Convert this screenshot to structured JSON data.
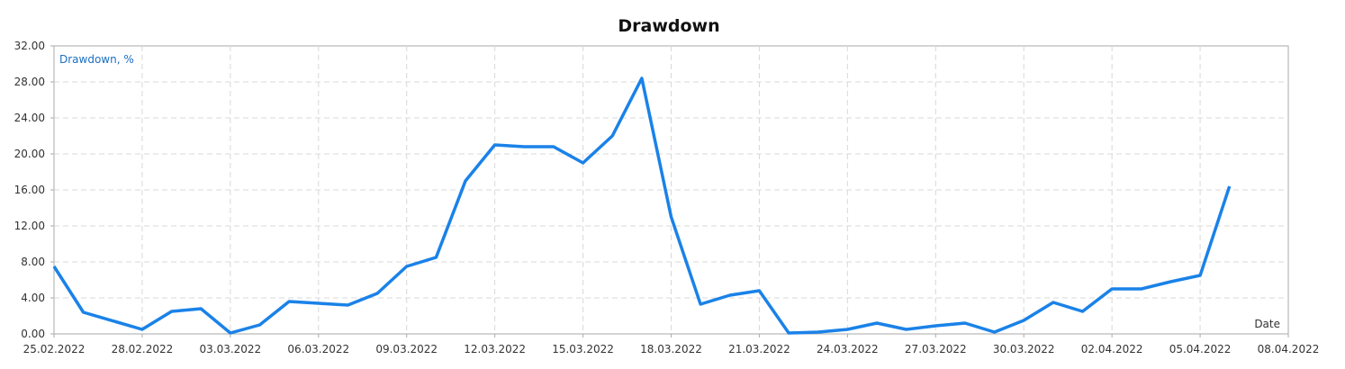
{
  "chart_data": {
    "type": "line",
    "title": "Drawdown",
    "ylabel": "Drawdown, %",
    "xlabel": "Date",
    "x": [
      "25.02.2022",
      "26.02.2022",
      "28.02.2022",
      "01.03.2022",
      "02.03.2022",
      "03.03.2022",
      "04.03.2022",
      "05.03.2022",
      "06.03.2022",
      "07.03.2022",
      "08.03.2022",
      "09.03.2022",
      "10.03.2022",
      "11.03.2022",
      "12.03.2022",
      "13.03.2022",
      "14.03.2022",
      "15.03.2022",
      "16.03.2022",
      "17.03.2022",
      "18.03.2022",
      "19.03.2022",
      "20.03.2022",
      "21.03.2022",
      "22.03.2022",
      "23.03.2022",
      "24.03.2022",
      "25.03.2022",
      "26.03.2022",
      "27.03.2022",
      "28.03.2022",
      "29.03.2022",
      "30.03.2022",
      "31.03.2022",
      "01.04.2022",
      "02.04.2022",
      "03.04.2022",
      "04.04.2022",
      "05.04.2022",
      "06.04.2022"
    ],
    "series": [
      {
        "name": "Drawdown, %",
        "color": "#1a82e8",
        "values": [
          7.5,
          2.4,
          0.5,
          2.5,
          2.8,
          0.1,
          1.0,
          3.6,
          3.4,
          3.2,
          4.5,
          7.5,
          8.5,
          17.0,
          21.0,
          20.8,
          20.8,
          19.0,
          22.0,
          28.4,
          13.0,
          3.3,
          4.3,
          4.8,
          0.1,
          0.2,
          0.5,
          1.2,
          0.5,
          0.9,
          1.2,
          0.2,
          1.5,
          3.5,
          2.5,
          5.0,
          5.0,
          5.8,
          6.5,
          16.4
        ]
      }
    ],
    "xlim": [
      "25.02.2022",
      "08.04.2022"
    ],
    "xticks": [
      "25.02.2022",
      "28.02.2022",
      "03.03.2022",
      "06.03.2022",
      "09.03.2022",
      "12.03.2022",
      "15.03.2022",
      "18.03.2022",
      "21.03.2022",
      "24.03.2022",
      "27.03.2022",
      "30.03.2022",
      "02.04.2022",
      "05.04.2022",
      "08.04.2022"
    ],
    "ylim": [
      0,
      32
    ],
    "yticks": [
      {
        "value": 0,
        "label": "0.00"
      },
      {
        "value": 4,
        "label": "4.00"
      },
      {
        "value": 8,
        "label": "8.00"
      },
      {
        "value": 12,
        "label": "12.00"
      },
      {
        "value": 16,
        "label": "16.00"
      },
      {
        "value": 20,
        "label": "20.00"
      },
      {
        "value": 24,
        "label": "24.00"
      },
      {
        "value": 28,
        "label": "28.00"
      },
      {
        "value": 32,
        "label": "32.00"
      }
    ],
    "grid": true
  }
}
